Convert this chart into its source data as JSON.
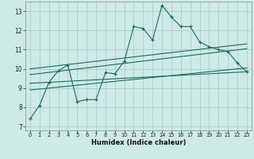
{
  "xlabel": "Humidex (Indice chaleur)",
  "background_color": "#ceeae6",
  "grid_color": "#aacfcb",
  "line_color": "#1a6b5e",
  "xlim": [
    -0.5,
    23.5
  ],
  "ylim": [
    6.8,
    13.5
  ],
  "yticks": [
    7,
    8,
    9,
    10,
    11,
    12,
    13
  ],
  "xticks": [
    0,
    1,
    2,
    3,
    4,
    5,
    6,
    7,
    8,
    9,
    10,
    11,
    12,
    13,
    14,
    15,
    16,
    17,
    18,
    19,
    20,
    21,
    22,
    23
  ],
  "series": [
    [
      0,
      7.4
    ],
    [
      1,
      8.1
    ],
    [
      2,
      9.3
    ],
    [
      3,
      9.9
    ],
    [
      4,
      10.2
    ],
    [
      5,
      8.3
    ],
    [
      6,
      8.4
    ],
    [
      7,
      8.4
    ],
    [
      8,
      9.8
    ],
    [
      9,
      9.75
    ],
    [
      10,
      10.4
    ],
    [
      11,
      12.2
    ],
    [
      12,
      12.1
    ],
    [
      13,
      11.5
    ],
    [
      14,
      13.3
    ],
    [
      15,
      12.7
    ],
    [
      16,
      12.2
    ],
    [
      17,
      12.2
    ],
    [
      18,
      11.4
    ],
    [
      19,
      11.15
    ],
    [
      20,
      11.0
    ],
    [
      21,
      10.9
    ],
    [
      22,
      10.3
    ],
    [
      23,
      9.85
    ]
  ],
  "trend_lines": [
    {
      "x_start": 0,
      "y_start": 10.0,
      "x_end": 23,
      "y_end": 11.3
    },
    {
      "x_start": 0,
      "y_start": 9.7,
      "x_end": 23,
      "y_end": 11.05
    },
    {
      "x_start": 0,
      "y_start": 9.25,
      "x_end": 23,
      "y_end": 9.85
    },
    {
      "x_start": 0,
      "y_start": 8.9,
      "x_end": 23,
      "y_end": 10.05
    }
  ]
}
